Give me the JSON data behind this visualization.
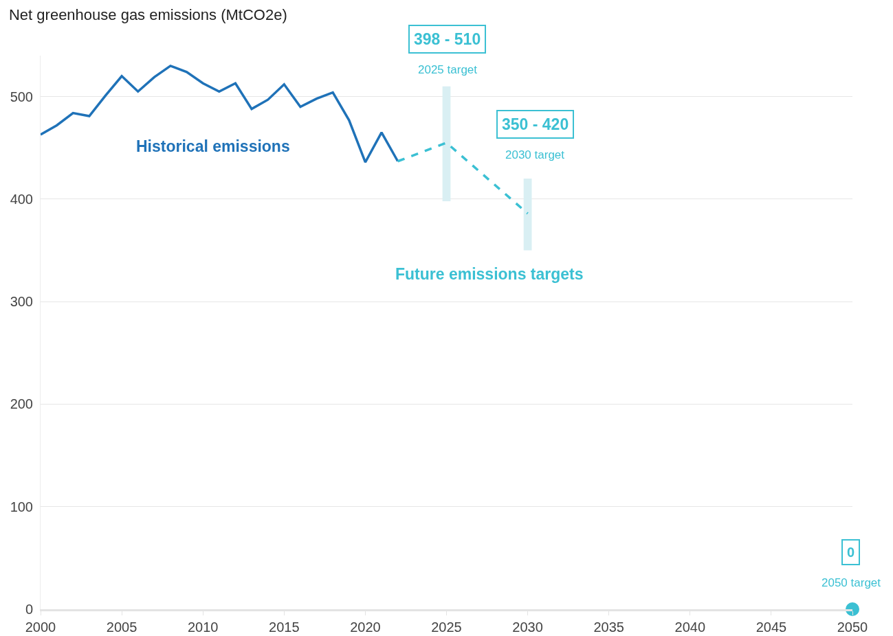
{
  "chart_data": {
    "type": "line",
    "title": "Net greenhouse gas emissions (MtCO2e)",
    "xlim": [
      2000,
      2050
    ],
    "xticks": [
      2000,
      2005,
      2010,
      2015,
      2020,
      2025,
      2030,
      2035,
      2040,
      2045,
      2050
    ],
    "ylim": [
      0,
      540
    ],
    "yticks": [
      0,
      100,
      200,
      300,
      400,
      500
    ],
    "grid": "y",
    "series": [
      {
        "type": "bar",
        "color": "#d9eff3",
        "x": [
          2025,
          2030
        ],
        "base": [
          398,
          350
        ],
        "values": [
          112,
          70
        ]
      },
      {
        "color": "#1f72b8",
        "line_style": "solid",
        "marker": "none",
        "x": [
          2000,
          2001,
          2002,
          2003,
          2004,
          2005,
          2006,
          2007,
          2008,
          2009,
          2010,
          2011,
          2012,
          2013,
          2014,
          2015,
          2016,
          2017,
          2018,
          2019,
          2020,
          2021,
          2022
        ],
        "values": [
          463,
          472,
          484,
          481,
          501,
          520,
          505,
          519,
          530,
          524,
          513,
          505,
          513,
          488,
          497,
          512,
          490,
          498,
          504,
          477,
          436,
          465,
          437
        ]
      },
      {
        "color": "#3bc0d3",
        "line_style": "dashed",
        "marker": "none",
        "x": [
          2022,
          2025,
          2030
        ],
        "values": [
          437,
          455,
          386
        ]
      },
      {
        "type": "scatter",
        "color": "#3bc0d3",
        "marker": "circle",
        "x": [
          2050
        ],
        "values": [
          0
        ]
      }
    ],
    "annotations": [
      "Historical emissions",
      "Future emissions targets",
      "398 - 510",
      "2025 target",
      "350 - 420",
      "2030 target",
      "0",
      "2050 target"
    ]
  }
}
